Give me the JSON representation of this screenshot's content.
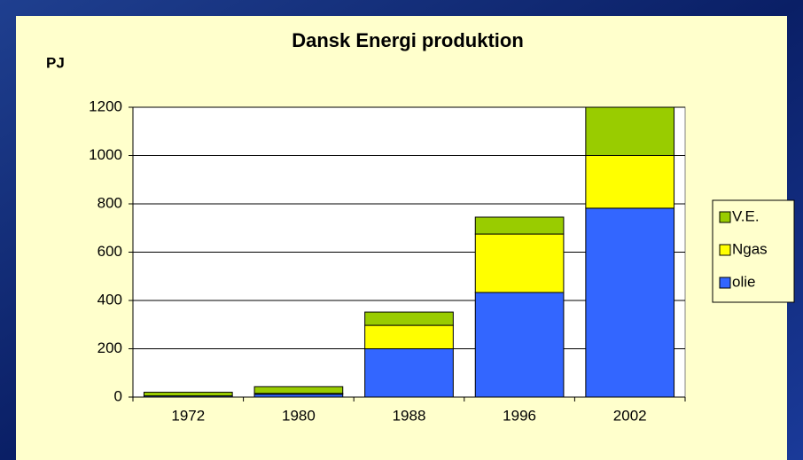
{
  "chart_data": {
    "type": "stacked_bar",
    "title": "Dansk Energi produktion",
    "y_label": "PJ",
    "categories": [
      "1972",
      "1980",
      "1988",
      "1996",
      "2002"
    ],
    "series": [
      {
        "name": "olie",
        "color": "#3366ff",
        "values": [
          5,
          12,
          200,
          433,
          782
        ]
      },
      {
        "name": "Ngas",
        "color": "#ffff00",
        "values": [
          0,
          3,
          97,
          242,
          218
        ]
      },
      {
        "name": "V.E.",
        "color": "#99cc00",
        "values": [
          15,
          28,
          55,
          70,
          200
        ]
      }
    ],
    "ylim": [
      0,
      1200
    ],
    "yticks": [
      0,
      200,
      400,
      600,
      800,
      1000,
      1200
    ],
    "grid": true,
    "legend": "right"
  }
}
